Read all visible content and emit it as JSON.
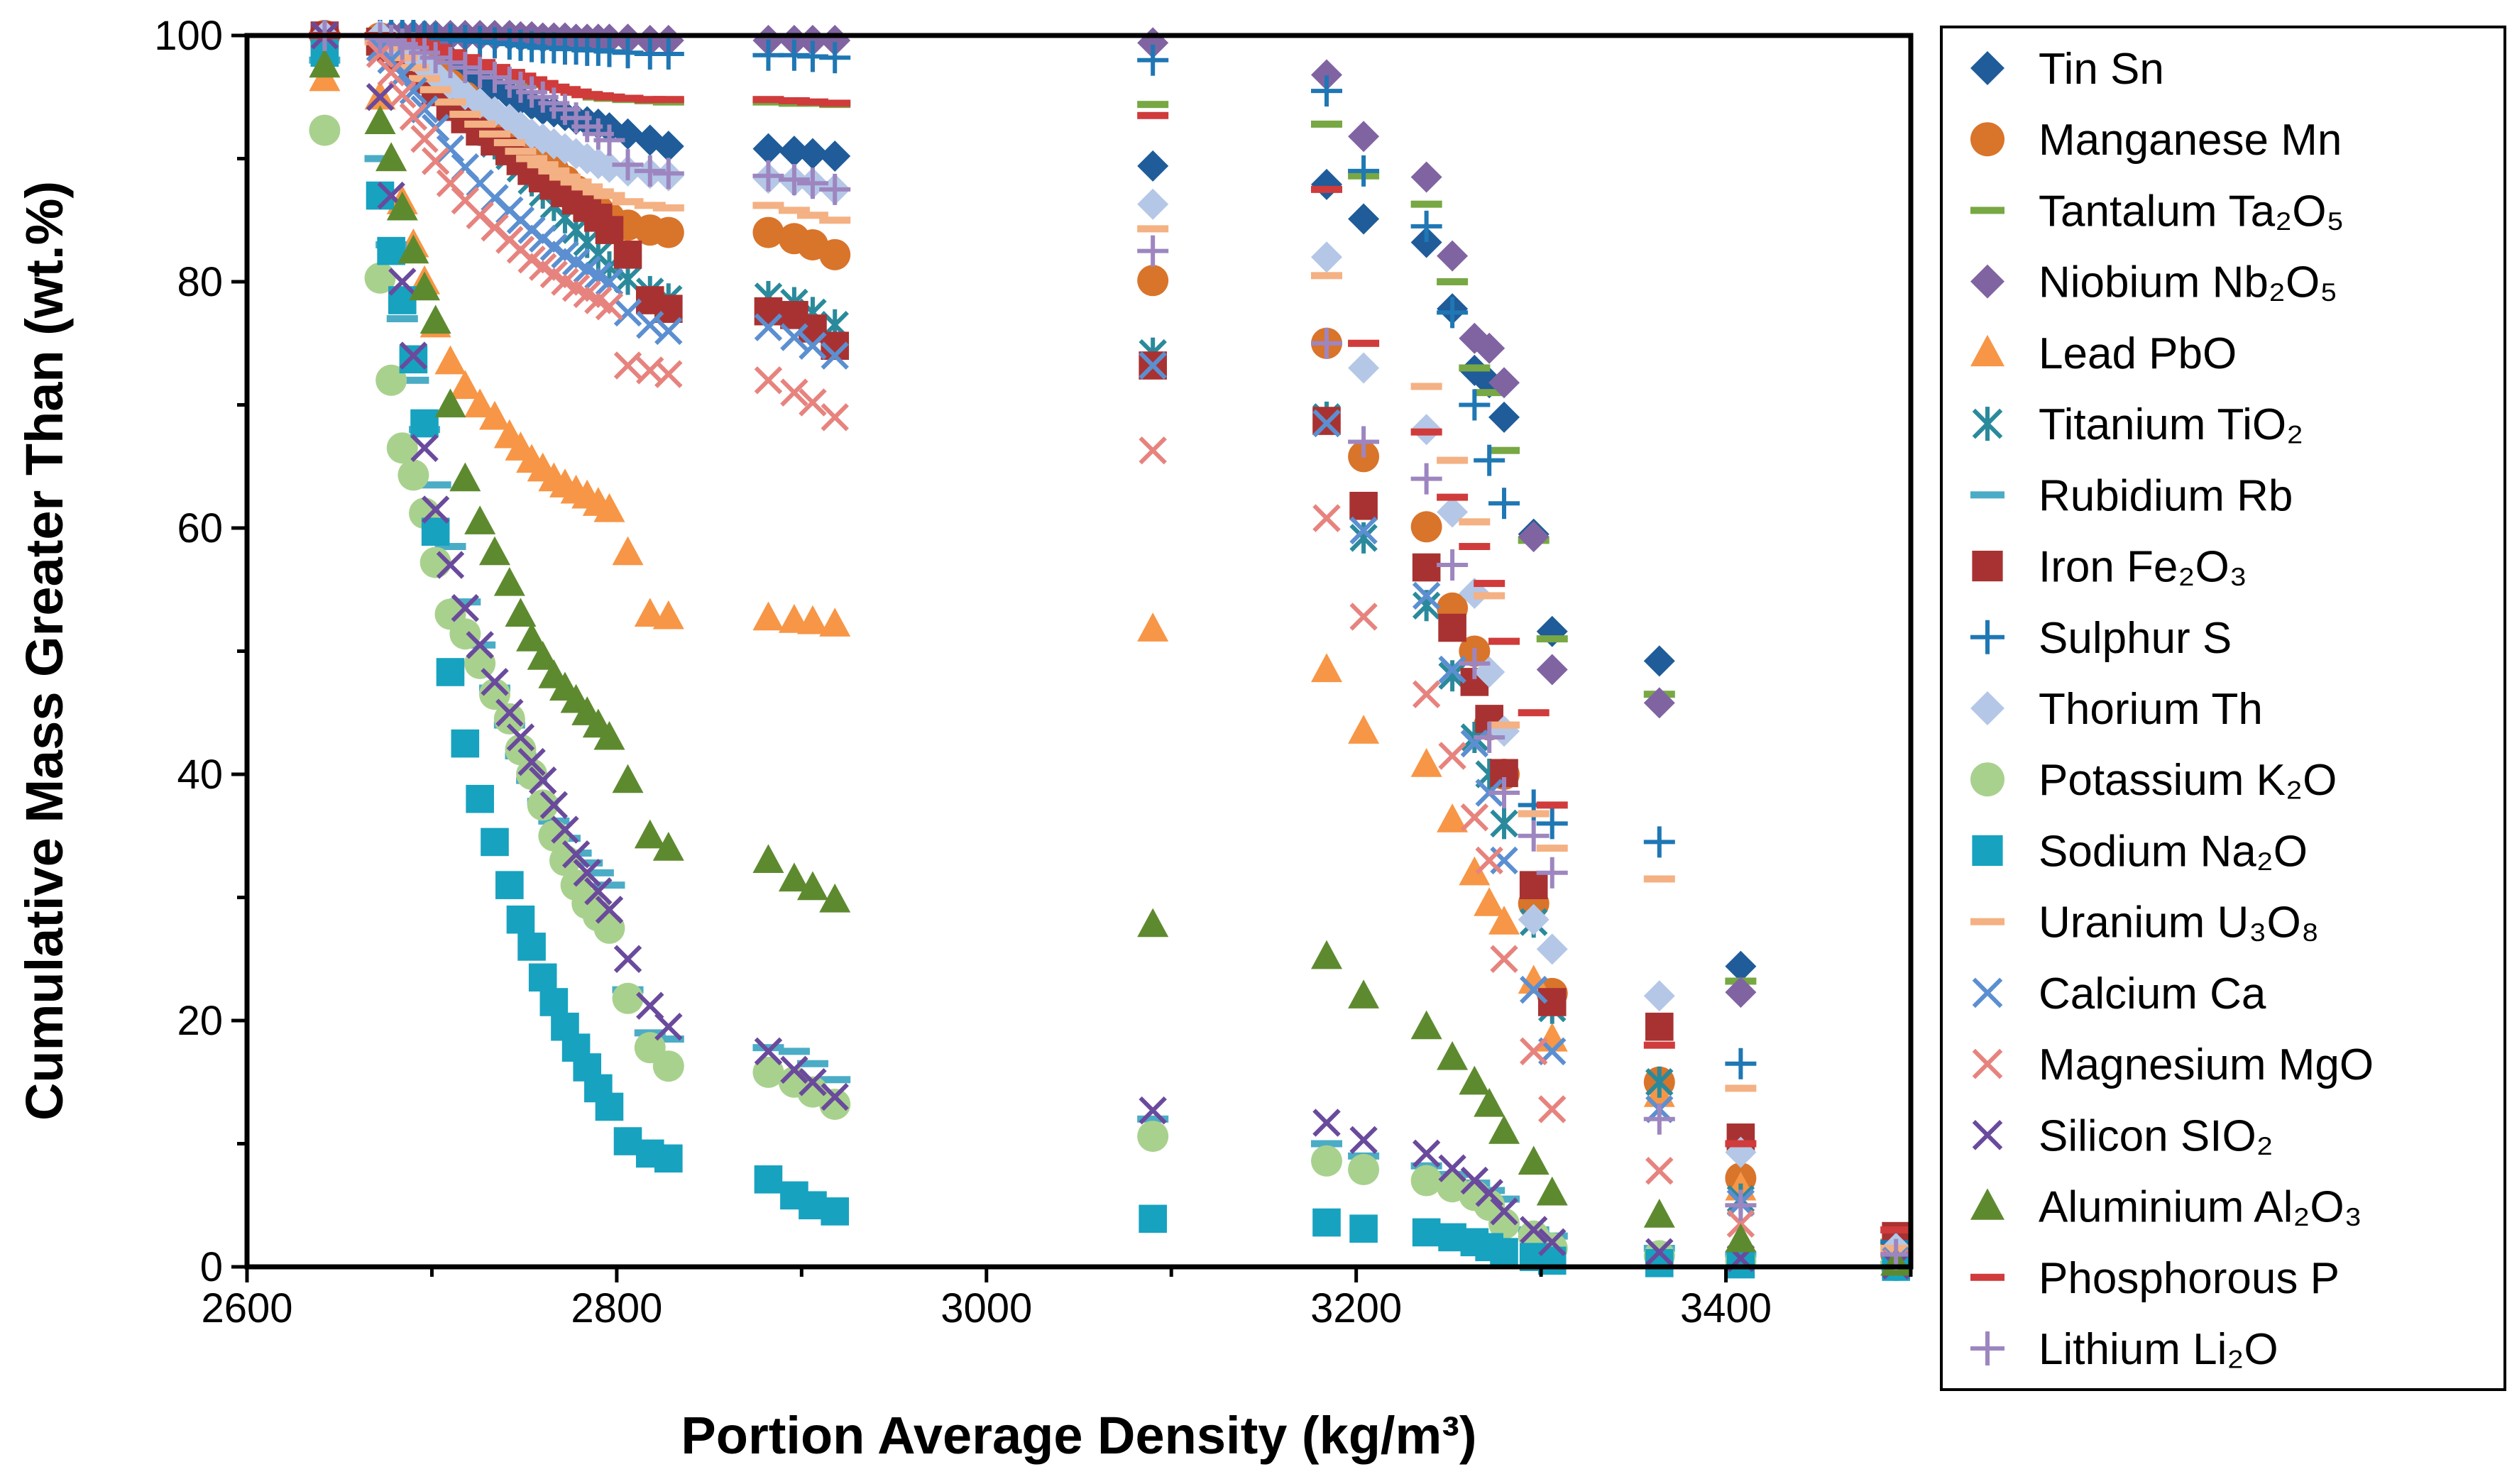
{
  "chart_data": {
    "type": "scatter",
    "xlabel": "Portion Average Density (kg/m³)",
    "ylabel": "Cumulative Mass Greater Than (wt.%)",
    "xlim": [
      2600,
      3500
    ],
    "ylim": [
      0,
      100
    ],
    "xticks": [
      2600,
      2800,
      3000,
      3200,
      3400
    ],
    "yticks": [
      0,
      20,
      40,
      60,
      80,
      100
    ],
    "legend_position": "right",
    "x": [
      2642,
      2672,
      2678,
      2684,
      2690,
      2696,
      2702,
      2710,
      2718,
      2726,
      2734,
      2742,
      2748,
      2754,
      2760,
      2766,
      2772,
      2778,
      2784,
      2790,
      2796,
      2806,
      2818,
      2828,
      2882,
      2896,
      2906,
      2918,
      3090,
      3184,
      3204,
      3238,
      3252,
      3264,
      3272,
      3280,
      3296,
      3306,
      3364,
      3408,
      3492
    ],
    "series": [
      {
        "name": "Tin Sn",
        "marker": "diamond",
        "color": "#1f5c99",
        "legend_label": "Tin Sn",
        "values": [
          100,
          100,
          100,
          99.8,
          99.6,
          99.2,
          98.8,
          98,
          97.2,
          96.4,
          95.8,
          95.2,
          94.8,
          94.4,
          94,
          93.8,
          93.5,
          93.2,
          93,
          92.8,
          92.5,
          92,
          91.5,
          91,
          90.8,
          90.6,
          90.4,
          90.2,
          89.4,
          87.9,
          85.1,
          83.2,
          77.8,
          72.8,
          71.8,
          69,
          59.5,
          51.6,
          49.2,
          24.4,
          2
        ]
      },
      {
        "name": "Manganese Mn",
        "marker": "circle",
        "color": "#d9742b",
        "legend_label": "Manganese Mn",
        "values": [
          100,
          99.8,
          99.5,
          99,
          98.5,
          97.8,
          97,
          96,
          95,
          94,
          93,
          92.2,
          91.4,
          90.6,
          89.8,
          89,
          88.2,
          87.4,
          86.6,
          85.8,
          85.2,
          84.6,
          84.2,
          84,
          84,
          83.5,
          83,
          82.2,
          80.1,
          75,
          65.8,
          60.1,
          53.5,
          50,
          44,
          40,
          29.5,
          22.2,
          15,
          7.2,
          1
        ]
      },
      {
        "name": "Tantalum Ta2O5",
        "marker": "dash",
        "color": "#77a843",
        "legend_label": "Tantalum Ta₂O₅",
        "values": [
          100,
          100,
          100,
          99.8,
          99.6,
          99.2,
          98.8,
          98.4,
          98,
          97.6,
          97.2,
          96.8,
          96.5,
          96.2,
          96,
          95.8,
          95.6,
          95.4,
          95.2,
          95,
          94.9,
          94.8,
          94.7,
          94.6,
          94.6,
          94.5,
          94.5,
          94.4,
          94.4,
          92.8,
          88.6,
          86.3,
          80,
          73,
          71,
          66.3,
          59,
          51,
          46.5,
          23.2,
          2
        ]
      },
      {
        "name": "Niobium Nb2O5",
        "marker": "diamond",
        "color": "#8064a2",
        "legend_label": "Niobium Nb₂O₅",
        "values": [
          100,
          100,
          100,
          100,
          100,
          100,
          100,
          100,
          100,
          100,
          100,
          100,
          99.9,
          99.9,
          99.8,
          99.8,
          99.8,
          99.7,
          99.7,
          99.7,
          99.7,
          99.7,
          99.6,
          99.6,
          99.6,
          99.6,
          99.6,
          99.6,
          99.4,
          96.8,
          91.8,
          88.5,
          82.1,
          75.4,
          74.6,
          71.8,
          59.3,
          48.5,
          45.8,
          22.3,
          2
        ]
      },
      {
        "name": "Lead PbO",
        "marker": "triangle",
        "color": "#f79646",
        "legend_label": "Lead PbO",
        "values": [
          96.5,
          95,
          90,
          86.5,
          83,
          80,
          76.5,
          73.5,
          71.5,
          70,
          69,
          67.5,
          66.5,
          65.5,
          64.8,
          64,
          63.5,
          63,
          62.6,
          62,
          61.5,
          58,
          53,
          52.8,
          52.7,
          52.5,
          52.4,
          52.2,
          51.8,
          48.5,
          43.5,
          40.8,
          36.3,
          32,
          29.5,
          28,
          23.2,
          18.5,
          14,
          6.4,
          1
        ]
      },
      {
        "name": "Titanium TiO2",
        "marker": "star",
        "color": "#2a8a9c",
        "legend_label": "Titanium TiO₂",
        "values": [
          100,
          99.5,
          99,
          98.2,
          97.4,
          96.5,
          95.6,
          94.5,
          93.4,
          92.3,
          91.2,
          90.2,
          89.2,
          88.2,
          87.2,
          86.2,
          85.2,
          84.2,
          83.2,
          82.2,
          81.2,
          80.2,
          79.2,
          78.6,
          78.8,
          78.3,
          77.5,
          76.5,
          74.2,
          69,
          59.2,
          53.7,
          48,
          43,
          40,
          36,
          28,
          21,
          15,
          5.5,
          0.5
        ]
      },
      {
        "name": "Rubidium Rb",
        "marker": "dash",
        "color": "#4bacc6",
        "legend_label": "Rubidium Rb",
        "values": [
          98,
          90,
          83,
          77,
          72,
          68,
          63.5,
          58.5,
          54,
          50.5,
          47,
          44,
          41.5,
          39.5,
          37.8,
          36.2,
          34.8,
          33.6,
          32.8,
          32,
          31,
          22.5,
          19,
          18.5,
          17.8,
          17.5,
          16.5,
          15.2,
          12,
          10,
          9,
          8.2,
          7.5,
          6.8,
          6.2,
          5.5,
          3,
          2.5,
          1.5,
          1,
          0.2
        ]
      },
      {
        "name": "Iron Fe2O3",
        "marker": "square",
        "color": "#a83232",
        "legend_label": "Iron Fe₂O₃",
        "values": [
          100,
          99.5,
          99,
          98.2,
          97.4,
          96.4,
          95.4,
          94.2,
          93.2,
          92.2,
          91.4,
          90.6,
          89.8,
          89,
          88.4,
          87.8,
          87.2,
          86.6,
          86,
          85.2,
          84.2,
          82.2,
          78.5,
          77.8,
          77.6,
          77.3,
          76.2,
          74.8,
          73.2,
          68.7,
          61.8,
          56.8,
          51.9,
          47.5,
          44.5,
          40.1,
          31,
          21.5,
          19.5,
          10.5,
          2.5
        ]
      },
      {
        "name": "Sulphur S",
        "marker": "plus",
        "color": "#1f77b4",
        "legend_label": "Sulphur S",
        "values": [
          100,
          100,
          100,
          100,
          100,
          99.9,
          99.8,
          99.7,
          99.6,
          99.5,
          99.4,
          99.3,
          99.2,
          99.1,
          99,
          99,
          98.9,
          98.9,
          98.8,
          98.8,
          98.7,
          98.6,
          98.5,
          98.5,
          98.4,
          98.4,
          98.3,
          98.2,
          98,
          95.5,
          89,
          84.5,
          77.5,
          70,
          65.5,
          62,
          37.5,
          36,
          34.5,
          16.5,
          2
        ]
      },
      {
        "name": "Thorium Th",
        "marker": "diamond",
        "color": "#b4c7e7",
        "legend_label": "Thorium Th",
        "values": [
          100,
          100,
          99.5,
          99,
          98.3,
          97.5,
          96.8,
          96,
          95.2,
          94.5,
          93.8,
          93.2,
          92.6,
          92,
          91.6,
          91.2,
          90.8,
          90.4,
          90,
          89.6,
          89.3,
          89,
          88.8,
          88.6,
          88.4,
          88.2,
          88,
          87.5,
          86.3,
          82,
          73,
          68,
          61.3,
          54.7,
          48.3,
          43.5,
          28.2,
          25.8,
          22,
          9.3,
          1.5
        ]
      },
      {
        "name": "Potassium K2O",
        "marker": "circle",
        "color": "#a9d18e",
        "legend_label": "Potassium K₂O",
        "values": [
          92.3,
          80.3,
          72,
          66.5,
          64.3,
          61.2,
          57.2,
          53,
          51.4,
          49,
          46.5,
          44.5,
          42,
          40,
          37.5,
          35,
          33,
          31,
          29.5,
          28.5,
          27.5,
          21.8,
          17.8,
          16.3,
          15.8,
          15,
          14.2,
          13.2,
          10.6,
          8.6,
          7.9,
          7,
          6.5,
          5.8,
          5,
          3.5,
          2.5,
          1.5,
          0.9,
          0.5,
          0.1
        ]
      },
      {
        "name": "Sodium Na2O",
        "marker": "square",
        "color": "#17a2c0",
        "legend_label": "Sodium Na₂O",
        "values": [
          98.6,
          87,
          82.5,
          78.5,
          73.7,
          68.5,
          59.7,
          48.3,
          42.5,
          38,
          34.5,
          31,
          28.2,
          26,
          23.5,
          21.5,
          19.5,
          17.8,
          16.2,
          14.5,
          13,
          10.2,
          9.2,
          8.8,
          7.1,
          5.8,
          5,
          4.5,
          3.9,
          3.6,
          3.1,
          2.8,
          2.4,
          2,
          1.6,
          1.2,
          0.8,
          0.5,
          0.3,
          0.2,
          0
        ]
      },
      {
        "name": "Uranium U3O8",
        "marker": "dash",
        "color": "#f4b183",
        "legend_label": "Uranium U₃O₈",
        "values": [
          100,
          99.5,
          99,
          98.2,
          97.4,
          96.5,
          95.6,
          94.6,
          93.6,
          92.8,
          92,
          91.3,
          90.6,
          90,
          89.5,
          89,
          88.5,
          88.1,
          87.7,
          87.3,
          87,
          86.5,
          86.2,
          86,
          86.2,
          85.8,
          85.4,
          85,
          84.3,
          80.5,
          75,
          71.5,
          65.5,
          60.5,
          54.5,
          44,
          36.8,
          34,
          31.5,
          14.5,
          1.5
        ]
      },
      {
        "name": "Calcium Ca",
        "marker": "x",
        "color": "#5b8fd1",
        "legend_label": "Calcium Ca",
        "values": [
          100,
          99,
          98,
          96.8,
          95.5,
          94,
          92.5,
          90.8,
          89.3,
          88,
          86.8,
          85.8,
          85,
          84.2,
          83.5,
          82.8,
          82.2,
          81.6,
          81,
          80.5,
          80,
          77.5,
          76.5,
          76,
          76.3,
          75.5,
          74.8,
          74,
          73.2,
          68.5,
          59.8,
          54.5,
          48.5,
          42.5,
          38.5,
          33,
          22.5,
          17.5,
          12.8,
          5.2,
          0.5
        ]
      },
      {
        "name": "Magnesium MgO",
        "marker": "x",
        "color": "#e7837e",
        "legend_label": "Magnesium MgO",
        "values": [
          100,
          98.5,
          97,
          95.2,
          93.4,
          91.6,
          89.8,
          88,
          86.6,
          85.4,
          84.4,
          83.4,
          82.6,
          81.8,
          81.2,
          80.6,
          80,
          79.5,
          79,
          78.5,
          78,
          73.2,
          72.8,
          72.5,
          72,
          71,
          70.2,
          69,
          66.3,
          60.8,
          52.8,
          46.5,
          41.5,
          36.5,
          33,
          25,
          17.5,
          12.8,
          7.8,
          3.5,
          0.3
        ]
      },
      {
        "name": "Silicon SiO2",
        "marker": "x",
        "color": "#6a4a9c",
        "legend_label": "Silicon SIO₂",
        "values": [
          100,
          95,
          87,
          80,
          74,
          66.5,
          61.5,
          57,
          53.5,
          50.5,
          47.5,
          45,
          43,
          41,
          39.5,
          37.5,
          35.5,
          33.5,
          32,
          30.5,
          29,
          25,
          21.2,
          19.5,
          17.5,
          16,
          15,
          13.8,
          12.7,
          11.7,
          10.3,
          9.2,
          8,
          7,
          6,
          4.5,
          3,
          2,
          1.2,
          0.7,
          0.1
        ]
      },
      {
        "name": "Aluminium Al2O3",
        "marker": "triangle",
        "color": "#5e8a2f",
        "legend_label": "Aluminium Al₂O₃",
        "values": [
          97.6,
          93,
          90,
          86,
          82.5,
          79.5,
          76.8,
          70,
          64,
          60.5,
          58,
          55.5,
          53,
          51,
          49.5,
          48,
          47,
          46,
          45,
          44,
          43,
          39.5,
          35,
          34,
          33,
          31.5,
          30.8,
          29.8,
          27.8,
          25.2,
          22,
          19.5,
          17,
          15,
          13.2,
          11,
          8.5,
          6,
          4.2,
          2.2,
          0.3
        ]
      },
      {
        "name": "Phosphorous P",
        "marker": "dash",
        "color": "#d03b3b",
        "legend_label": "Phosphorous P",
        "values": [
          100,
          100,
          99.9,
          99.8,
          99.6,
          99.3,
          99,
          98.6,
          98.2,
          97.8,
          97.4,
          97,
          96.7,
          96.4,
          96.1,
          95.8,
          95.6,
          95.4,
          95.2,
          95.1,
          95,
          94.9,
          94.8,
          94.8,
          94.8,
          94.7,
          94.6,
          94.5,
          93.5,
          87.5,
          75,
          67.8,
          62.5,
          58.5,
          55.5,
          50.8,
          45,
          37.5,
          18,
          10,
          3
        ]
      },
      {
        "name": "Lithium Li2O",
        "marker": "plus",
        "color": "#9d86c0",
        "legend_label": "Lithium Li₂O",
        "values": [
          100,
          99.8,
          99.6,
          99.3,
          99,
          98.6,
          98.2,
          97.8,
          97.4,
          97,
          96.6,
          96.2,
          95.8,
          95.4,
          95,
          94.5,
          94,
          93.3,
          92.6,
          92,
          91.5,
          89.5,
          89,
          88.8,
          88.6,
          88.3,
          88,
          87.5,
          82.5,
          75,
          67,
          64,
          57,
          49,
          43,
          38.5,
          35,
          32,
          12,
          5,
          1
        ]
      }
    ]
  }
}
